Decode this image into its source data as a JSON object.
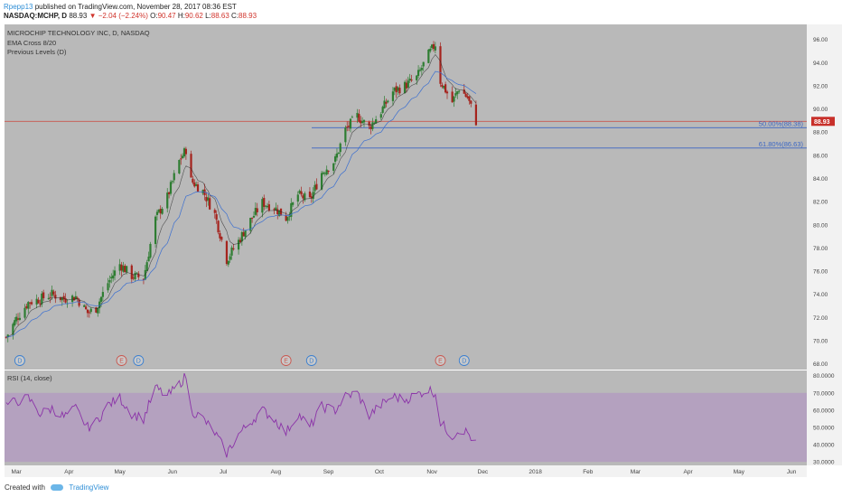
{
  "header": {
    "user": "Rpepp13",
    "published_text": "published on TradingView.com, November 28, 2017 08:36 EST",
    "symbol": "NASDAQ:MCHP, D",
    "price": "88.93",
    "change_arrow": "▼",
    "change": "−2.04 (−2.24%)",
    "o_label": "O:",
    "o": "90.47",
    "h_label": "H:",
    "h": "90.62",
    "l_label": "L:",
    "l": "88.63",
    "c_label": "C:",
    "c": "88.93"
  },
  "legend": {
    "title": "MICROCHIP TECHNOLOGY INC, D, NASDAQ",
    "items": [
      "EMA Cross 8/20",
      "Previous Levels (D)"
    ]
  },
  "chart_data": [
    {
      "type": "candlestick",
      "y_ticks": [
        "96.00",
        "94.00",
        "92.00",
        "90.00",
        "88.00",
        "86.00",
        "84.00",
        "82.00",
        "80.00",
        "78.00",
        "76.00",
        "74.00",
        "72.00",
        "70.00",
        "68.00"
      ],
      "ylim": [
        67.5,
        97.3
      ],
      "x_ticks": [
        "Mar",
        "Apr",
        "May",
        "Jun",
        "Jul",
        "Aug",
        "Sep",
        "Oct",
        "Nov",
        "Dec",
        "2018",
        "Feb",
        "Mar",
        "Apr",
        "May",
        "Jun"
      ],
      "x_range": [
        "2017-02-22",
        "2018-06-10"
      ],
      "close_price": 88.93,
      "close_label": "88.93",
      "ema_fast_period": 8,
      "ema_slow_period": 20,
      "fib_levels": [
        {
          "label": "50.00%(88.38)",
          "value": 88.38
        },
        {
          "label": "61.80%(86.63)",
          "value": 86.63
        }
      ],
      "events": [
        {
          "date": "2017-03-03",
          "label": "D"
        },
        {
          "date": "2017-05-02",
          "label": "E"
        },
        {
          "date": "2017-05-12",
          "label": "D"
        },
        {
          "date": "2017-08-07",
          "label": "E"
        },
        {
          "date": "2017-08-22",
          "label": "D"
        },
        {
          "date": "2017-11-06",
          "label": "E"
        },
        {
          "date": "2017-11-20",
          "label": "D"
        }
      ],
      "close_series": [
        {
          "date": "2017-02-23",
          "value": 70.3
        },
        {
          "date": "2017-03-01",
          "value": 71.9
        },
        {
          "date": "2017-03-08",
          "value": 73.3
        },
        {
          "date": "2017-03-15",
          "value": 73.6
        },
        {
          "date": "2017-03-22",
          "value": 74.0
        },
        {
          "date": "2017-03-29",
          "value": 73.6
        },
        {
          "date": "2017-04-05",
          "value": 73.8
        },
        {
          "date": "2017-04-12",
          "value": 72.4
        },
        {
          "date": "2017-04-17",
          "value": 72.8
        },
        {
          "date": "2017-04-24",
          "value": 75.0
        },
        {
          "date": "2017-05-01",
          "value": 76.6
        },
        {
          "date": "2017-05-08",
          "value": 75.6
        },
        {
          "date": "2017-05-15",
          "value": 75.4
        },
        {
          "date": "2017-05-22",
          "value": 80.5
        },
        {
          "date": "2017-05-29",
          "value": 82.4
        },
        {
          "date": "2017-06-05",
          "value": 85.5
        },
        {
          "date": "2017-06-09",
          "value": 86.5
        },
        {
          "date": "2017-06-12",
          "value": 83.8
        },
        {
          "date": "2017-06-19",
          "value": 82.9
        },
        {
          "date": "2017-06-26",
          "value": 80.9
        },
        {
          "date": "2017-07-03",
          "value": 77.0
        },
        {
          "date": "2017-07-10",
          "value": 78.6
        },
        {
          "date": "2017-07-17",
          "value": 80.4
        },
        {
          "date": "2017-07-24",
          "value": 81.9
        },
        {
          "date": "2017-07-31",
          "value": 81.5
        },
        {
          "date": "2017-08-07",
          "value": 80.6
        },
        {
          "date": "2017-08-14",
          "value": 82.6
        },
        {
          "date": "2017-08-21",
          "value": 82.1
        },
        {
          "date": "2017-08-28",
          "value": 84.5
        },
        {
          "date": "2017-09-05",
          "value": 85.6
        },
        {
          "date": "2017-09-11",
          "value": 88.2
        },
        {
          "date": "2017-09-18",
          "value": 89.4
        },
        {
          "date": "2017-09-25",
          "value": 88.4
        },
        {
          "date": "2017-10-02",
          "value": 89.8
        },
        {
          "date": "2017-10-09",
          "value": 91.5
        },
        {
          "date": "2017-10-16",
          "value": 92.0
        },
        {
          "date": "2017-10-23",
          "value": 92.7
        },
        {
          "date": "2017-10-30",
          "value": 94.7
        },
        {
          "date": "2017-11-03",
          "value": 95.6
        },
        {
          "date": "2017-11-06",
          "value": 92.4
        },
        {
          "date": "2017-11-13",
          "value": 90.6
        },
        {
          "date": "2017-11-17",
          "value": 91.8
        },
        {
          "date": "2017-11-22",
          "value": 90.97
        },
        {
          "date": "2017-11-27",
          "value": 88.93
        }
      ]
    },
    {
      "type": "line",
      "title": "RSI (14, close)",
      "y_ticks": [
        "80.0000",
        "70.0000",
        "60.0000",
        "50.0000",
        "40.0000",
        "30.0000"
      ],
      "ylim": [
        28,
        83
      ],
      "band": [
        30,
        70
      ],
      "series": [
        {
          "values": [
            {
              "date": "2017-02-23",
              "value": 63
            },
            {
              "date": "2017-03-01",
              "value": 65
            },
            {
              "date": "2017-03-08",
              "value": 67
            },
            {
              "date": "2017-03-15",
              "value": 58
            },
            {
              "date": "2017-03-22",
              "value": 61
            },
            {
              "date": "2017-03-29",
              "value": 56
            },
            {
              "date": "2017-04-05",
              "value": 61
            },
            {
              "date": "2017-04-12",
              "value": 50
            },
            {
              "date": "2017-04-17",
              "value": 53
            },
            {
              "date": "2017-04-24",
              "value": 63
            },
            {
              "date": "2017-05-01",
              "value": 67
            },
            {
              "date": "2017-05-08",
              "value": 58
            },
            {
              "date": "2017-05-15",
              "value": 55
            },
            {
              "date": "2017-05-22",
              "value": 73
            },
            {
              "date": "2017-05-29",
              "value": 68
            },
            {
              "date": "2017-06-05",
              "value": 75
            },
            {
              "date": "2017-06-09",
              "value": 80
            },
            {
              "date": "2017-06-12",
              "value": 60
            },
            {
              "date": "2017-06-19",
              "value": 55
            },
            {
              "date": "2017-06-26",
              "value": 47
            },
            {
              "date": "2017-07-03",
              "value": 35
            },
            {
              "date": "2017-07-10",
              "value": 46
            },
            {
              "date": "2017-07-17",
              "value": 53
            },
            {
              "date": "2017-07-24",
              "value": 60
            },
            {
              "date": "2017-07-31",
              "value": 55
            },
            {
              "date": "2017-08-07",
              "value": 47
            },
            {
              "date": "2017-08-14",
              "value": 58
            },
            {
              "date": "2017-08-21",
              "value": 50
            },
            {
              "date": "2017-08-28",
              "value": 62
            },
            {
              "date": "2017-09-05",
              "value": 60
            },
            {
              "date": "2017-09-11",
              "value": 68
            },
            {
              "date": "2017-09-18",
              "value": 70
            },
            {
              "date": "2017-09-25",
              "value": 57
            },
            {
              "date": "2017-10-02",
              "value": 63
            },
            {
              "date": "2017-10-09",
              "value": 68
            },
            {
              "date": "2017-10-16",
              "value": 66
            },
            {
              "date": "2017-10-23",
              "value": 69
            },
            {
              "date": "2017-10-30",
              "value": 72
            },
            {
              "date": "2017-11-03",
              "value": 70
            },
            {
              "date": "2017-11-06",
              "value": 53
            },
            {
              "date": "2017-11-13",
              "value": 45
            },
            {
              "date": "2017-11-17",
              "value": 49
            },
            {
              "date": "2017-11-22",
              "value": 47
            },
            {
              "date": "2017-11-27",
              "value": 40
            }
          ]
        }
      ]
    }
  ],
  "colors": {
    "pane_bg": "#b9b9b9",
    "up": "#2e7d32",
    "down": "#a5231d",
    "ema_fast": "#222222",
    "ema_slow": "#3b6fd0",
    "fib": "#3a66c4",
    "price_line": "#c9574f",
    "rsi_line": "#8b33a8",
    "rsi_band": "#b39cc0"
  },
  "footer": {
    "created_with": "Created with",
    "brand": "TradingView"
  }
}
